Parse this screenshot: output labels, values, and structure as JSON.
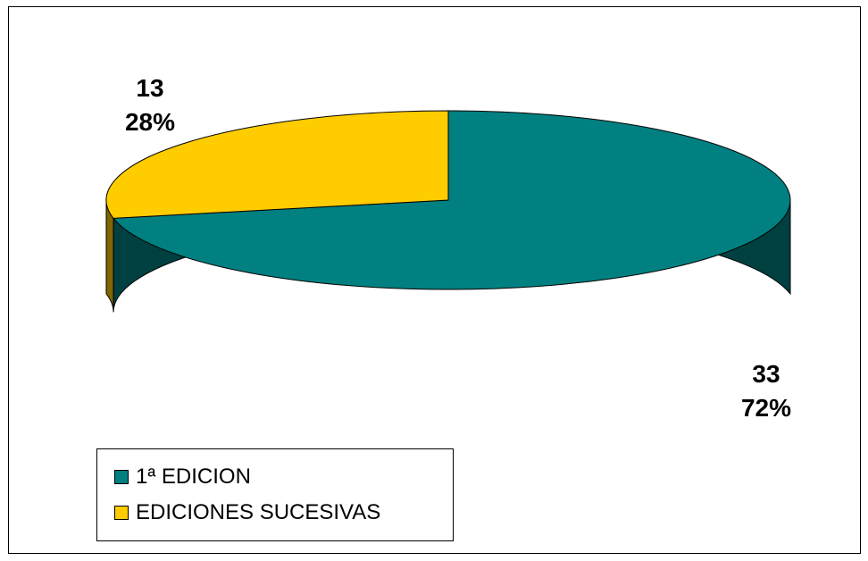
{
  "chart_data": {
    "type": "pie",
    "title": "",
    "categories": [
      "1ª EDICION",
      "EDICIONES SUCESIVAS"
    ],
    "values": [
      33,
      13
    ],
    "percentages": [
      "72%",
      "28%"
    ],
    "colors": [
      "#008080",
      "#ffcc00"
    ],
    "side_colors": [
      "#004040",
      "#806600"
    ],
    "legend_position": "bottom-left",
    "three_d": true
  }
}
